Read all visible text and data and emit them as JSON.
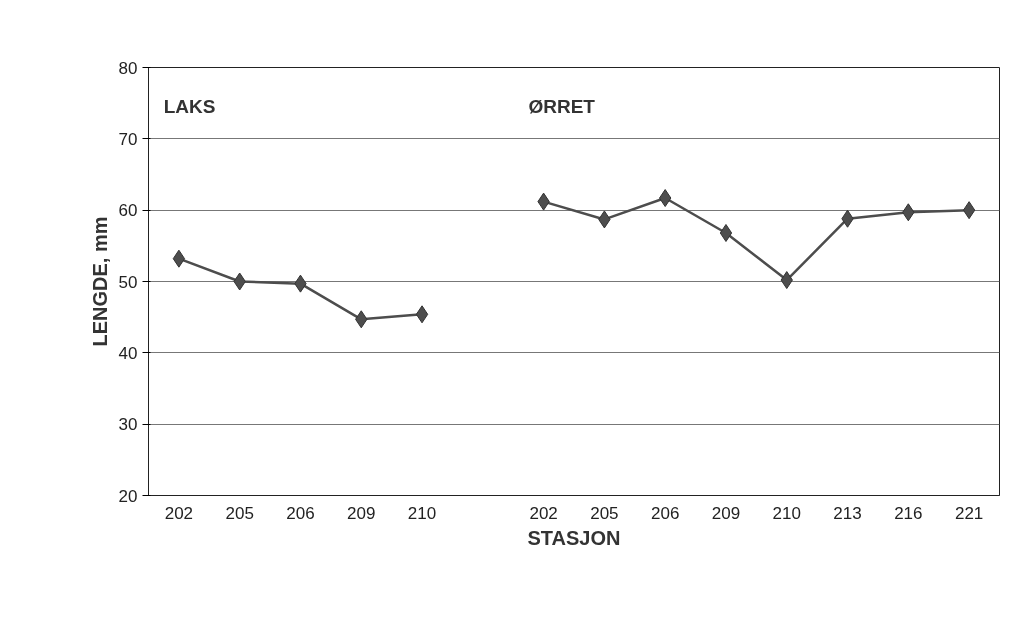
{
  "chart_data": {
    "type": "line",
    "xlabel": "STASJON",
    "ylabel": "LENGDE, mm",
    "categories": [
      "202",
      "205",
      "206",
      "209",
      "210",
      null,
      "202",
      "205",
      "206",
      "209",
      "210",
      "213",
      "216",
      "221"
    ],
    "series": [
      {
        "color": "#4d4d4d",
        "values": [
          53.2,
          50.0,
          49.7,
          44.7,
          45.4,
          null,
          null,
          null,
          null,
          null,
          null,
          null,
          null,
          null
        ]
      },
      {
        "color": "#4d4d4d",
        "values": [
          null,
          null,
          null,
          null,
          null,
          null,
          61.2,
          58.7,
          61.7,
          56.8,
          50.2,
          58.8,
          59.7,
          60.0
        ]
      }
    ],
    "annotations": [
      "LAKS",
      "ØRRET"
    ],
    "ylim": [
      20,
      80
    ],
    "yticks": [
      20,
      30,
      40,
      50,
      60,
      70,
      80
    ],
    "grid": "y",
    "marker": "diamond",
    "line_style": "solid"
  }
}
